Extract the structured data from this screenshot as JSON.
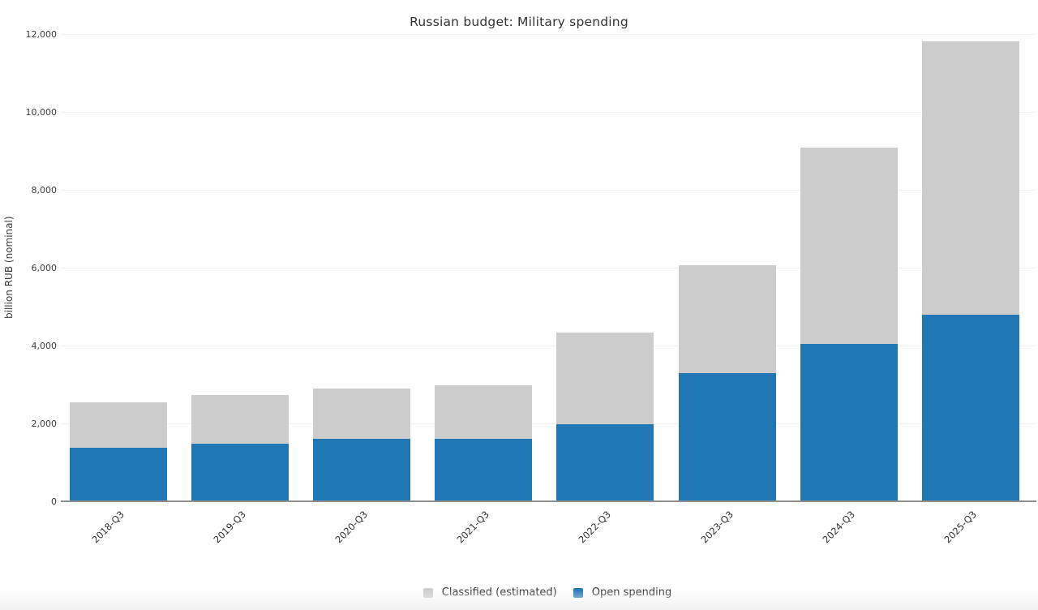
{
  "title": "Russian budget: Military spending",
  "chart_data": {
    "type": "bar",
    "stacked": true,
    "title": "Russian budget: Military spending",
    "xlabel": "",
    "ylabel": "billion RUB (nominal)",
    "categories": [
      "2018-Q3",
      "2019-Q3",
      "2020-Q3",
      "2021-Q3",
      "2022-Q3",
      "2023-Q3",
      "2024-Q3",
      "2025-Q3"
    ],
    "series": [
      {
        "name": "Open spending",
        "color": "#2077b4",
        "values": [
          1380,
          1470,
          1595,
          1610,
          1970,
          3300,
          4040,
          4800
        ]
      },
      {
        "name": "Classified (estimated)",
        "color": "#cccccc",
        "values": [
          1170,
          1250,
          1295,
          1380,
          2370,
          2770,
          5050,
          7020
        ]
      }
    ],
    "stack_totals": [
      2550,
      2720,
      2890,
      2990,
      4340,
      6070,
      9090,
      11820
    ],
    "ylim": [
      0,
      12000
    ],
    "yticks": [
      0,
      2000,
      4000,
      6000,
      8000,
      10000,
      12000
    ],
    "ytick_labels": [
      "0",
      "2,000",
      "4,000",
      "6,000",
      "8,000",
      "10,000",
      "12,000"
    ],
    "grid": true,
    "legend_position": "bottom",
    "legend_order": [
      "Classified (estimated)",
      "Open spending"
    ]
  }
}
